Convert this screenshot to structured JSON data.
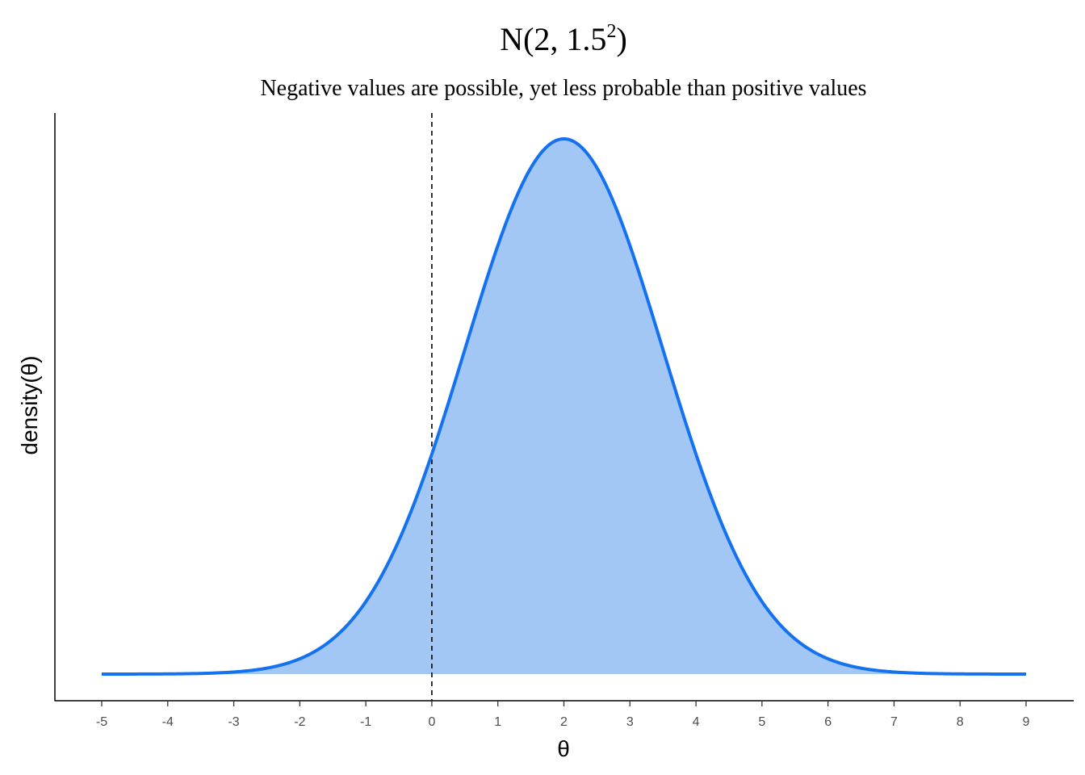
{
  "chart_data": {
    "type": "area",
    "title": {
      "main": "N(2, 1.5",
      "superscript": "2",
      "close": ")"
    },
    "subtitle": "Negative values are possible, yet less probable than positive values",
    "xlabel": "θ",
    "ylabel": "density(θ)",
    "xlim": [
      -5,
      9
    ],
    "x_ticks": [
      "-5",
      "-4",
      "-3",
      "-2",
      "-1",
      "0",
      "1",
      "2",
      "3",
      "4",
      "5",
      "6",
      "7",
      "8",
      "9"
    ],
    "distribution": {
      "family": "normal",
      "mean": 2,
      "sd": 1.5
    },
    "reference_line": {
      "x": 0,
      "style": "dashed"
    },
    "y_ticks_shown": false,
    "grid": false,
    "legend": "none",
    "colors": {
      "line": "#1472f0",
      "fill": "#a3c7f4",
      "reference_line": "#000000",
      "axis": "#000000",
      "tick_label": "#4d4d4d"
    }
  }
}
